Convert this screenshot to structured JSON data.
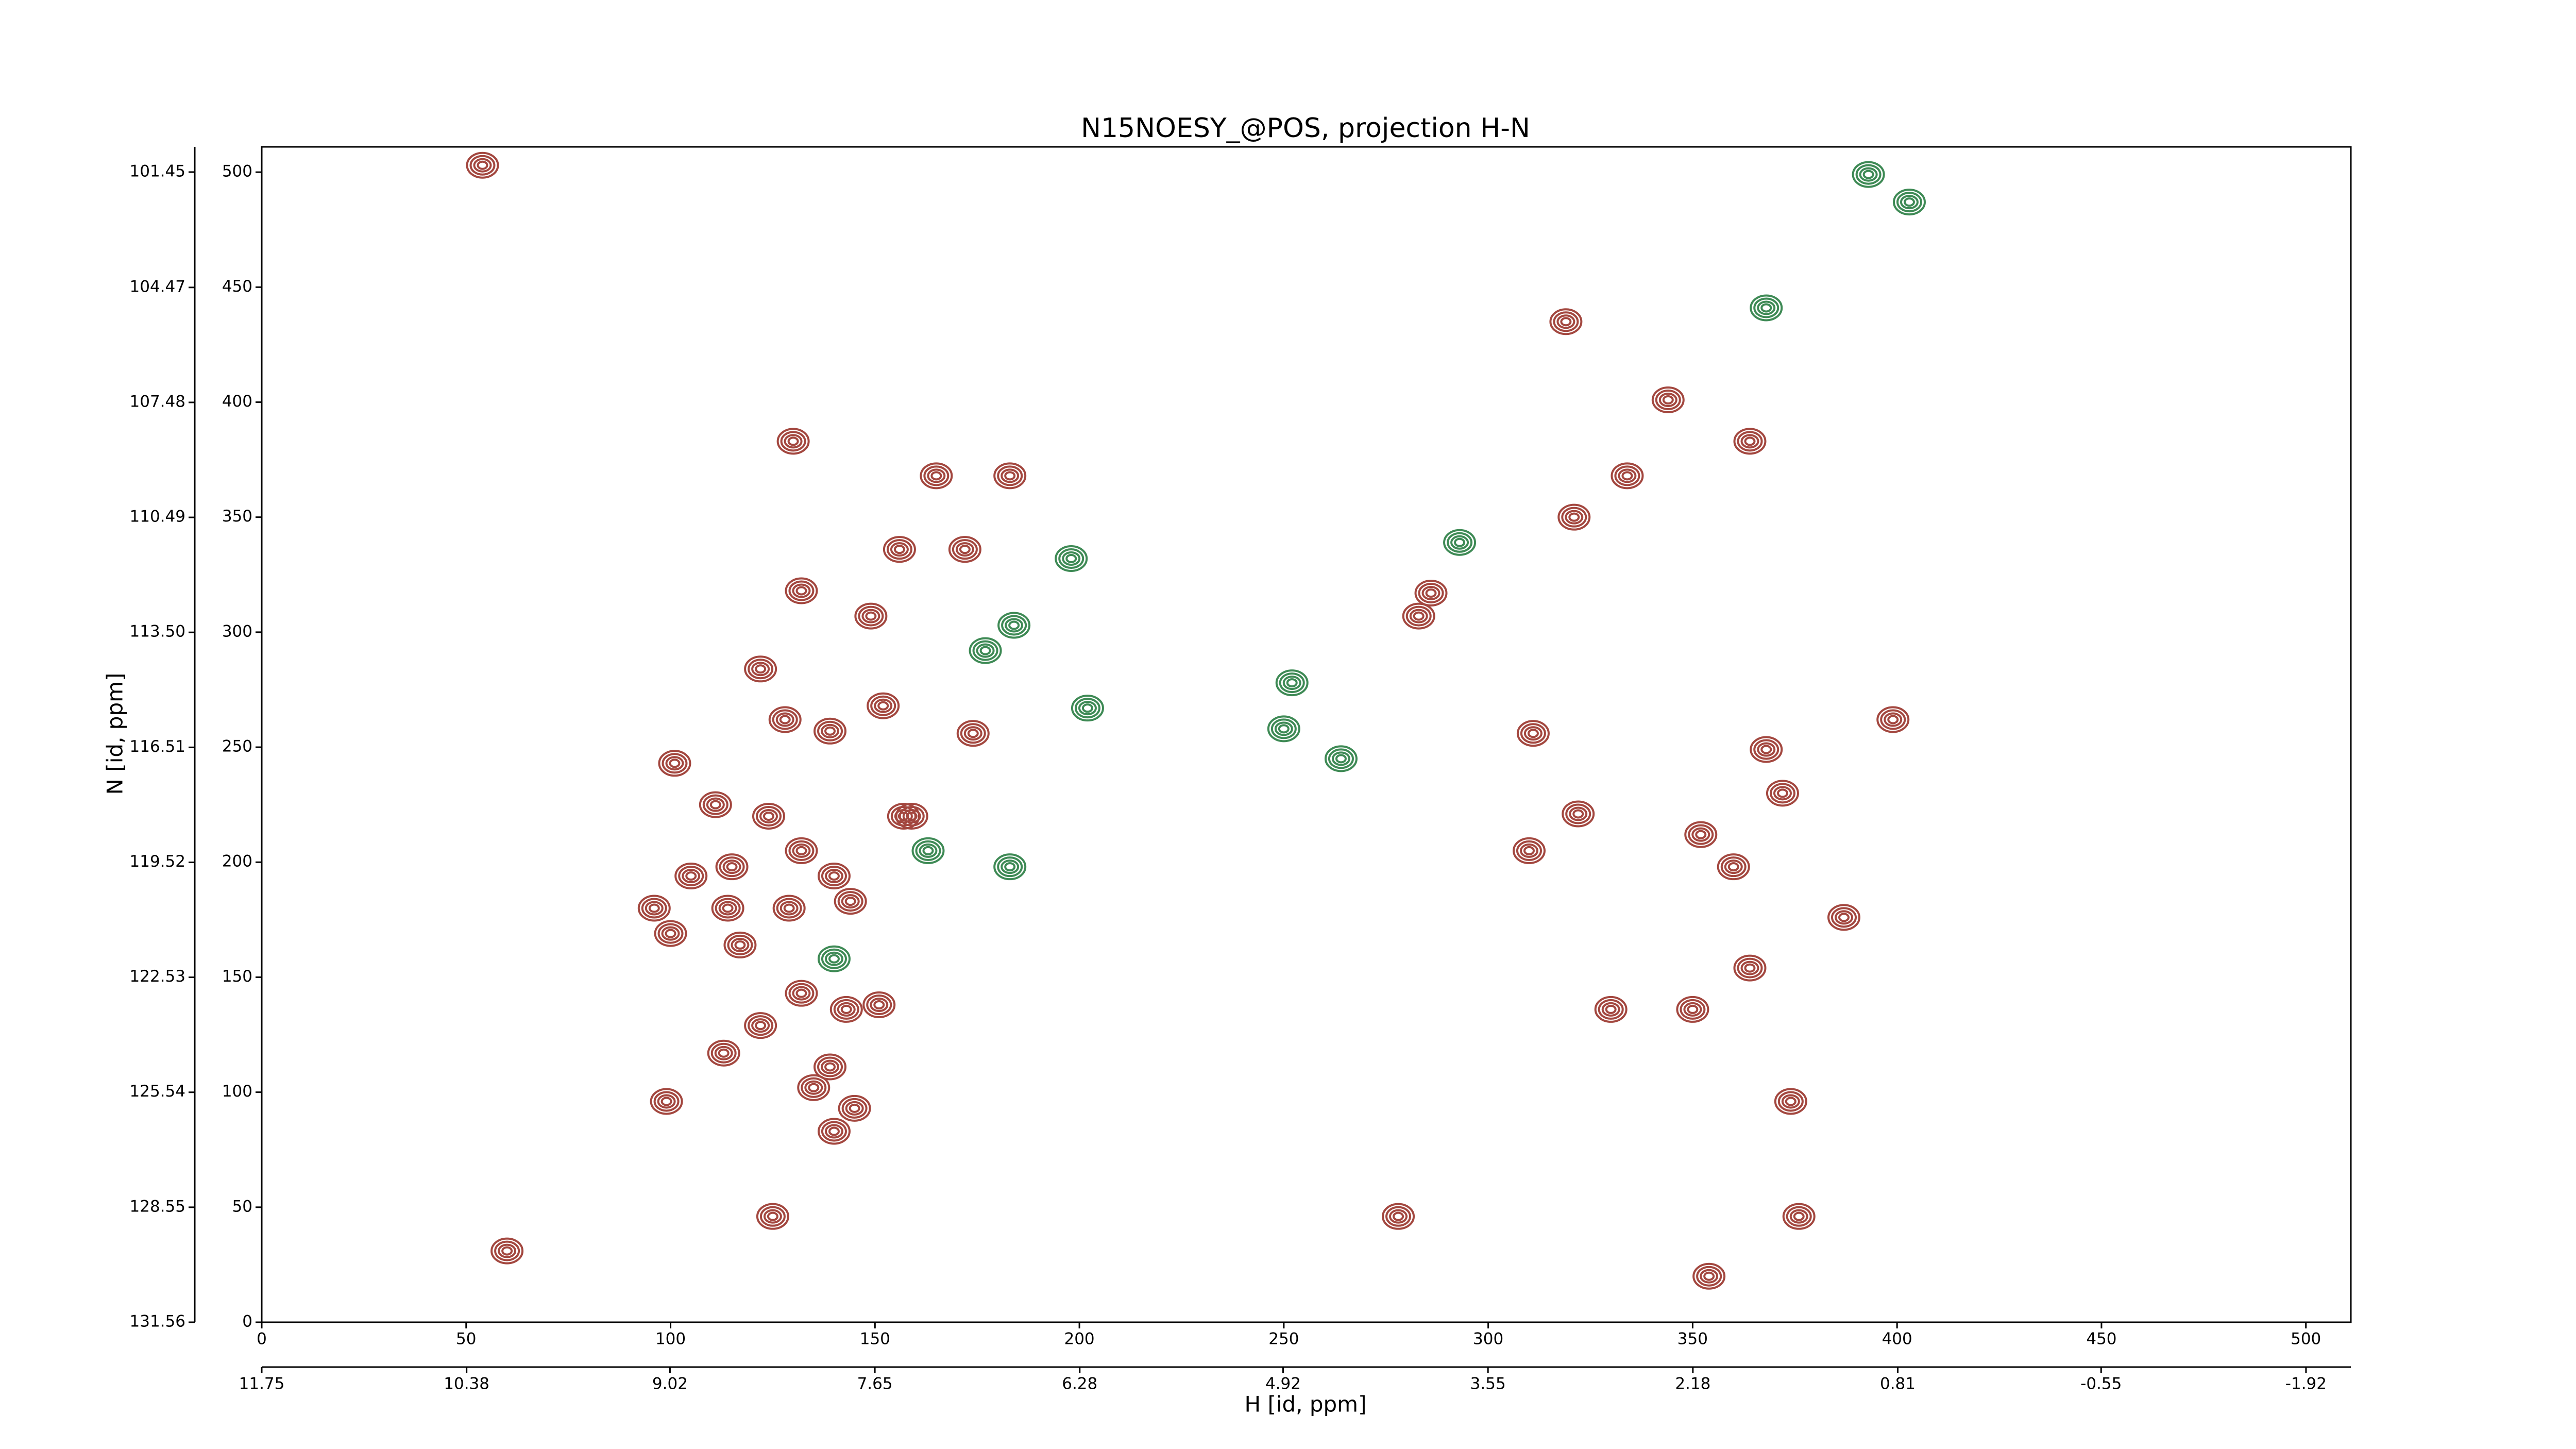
{
  "chart_data": {
    "type": "contour",
    "title": "N15NOESY_@POS, projection H-N",
    "x_label": "H [id, ppm]",
    "y_label": "N [id, ppm]",
    "xlim": [
      0,
      511
    ],
    "xticks": [
      0,
      50,
      100,
      150,
      200,
      250,
      300,
      350,
      400,
      450,
      500
    ],
    "ylim": [
      0,
      511
    ],
    "yticks": [
      0,
      50,
      100,
      150,
      200,
      250,
      300,
      350,
      400,
      450,
      500
    ],
    "x2lim": [
      11.75,
      -2.22
    ],
    "x2ticks": [
      11.75,
      10.38,
      9.02,
      7.65,
      6.28,
      4.92,
      3.55,
      2.18,
      0.81,
      -0.55,
      -1.92
    ],
    "y2lim": [
      131.56,
      100.79
    ],
    "y2ticks": [
      131.56,
      128.55,
      125.54,
      122.53,
      119.52,
      116.51,
      {
        "value": 113.5,
        "label": "113.50"
      },
      110.49,
      107.48,
      104.47,
      101.45
    ],
    "series": [
      {
        "color": "#a3473f",
        "x": [
          54,
          130,
          165,
          183,
          132,
          156,
          172,
          149,
          122,
          128,
          139,
          101,
          111,
          124,
          105,
          115,
          132,
          140,
          96,
          114,
          129,
          144,
          100,
          117,
          132,
          143,
          151,
          122,
          113,
          139,
          135,
          145,
          140,
          99,
          125,
          60,
          157,
          152,
          159,
          174,
          364,
          321,
          334,
          286,
          283,
          322,
          310,
          372,
          352,
          399,
          387,
          330,
          350,
          364,
          374,
          278,
          354,
          376,
          319,
          344,
          311,
          368,
          360
        ],
        "y": [
          503,
          383,
          368,
          368,
          318,
          336,
          336,
          307,
          284,
          262,
          257,
          243,
          225,
          220,
          194,
          198,
          205,
          194,
          180,
          180,
          180,
          183,
          169,
          164,
          143,
          136,
          138,
          129,
          117,
          111,
          102,
          93,
          83,
          96,
          46,
          31,
          220,
          268,
          220,
          256,
          383,
          350,
          368,
          317,
          307,
          221,
          205,
          230,
          212,
          262,
          176,
          136,
          136,
          154,
          96,
          46,
          20,
          46,
          435,
          401,
          256,
          249,
          198
        ]
      },
      {
        "color": "#3e8a55",
        "x": [
          198,
          184,
          177,
          202,
          183,
          163,
          252,
          250,
          264,
          393,
          403,
          368,
          293,
          140
        ],
        "y": [
          332,
          303,
          292,
          267,
          198,
          205,
          278,
          258,
          245,
          499,
          487,
          441,
          339,
          158
        ]
      }
    ]
  }
}
